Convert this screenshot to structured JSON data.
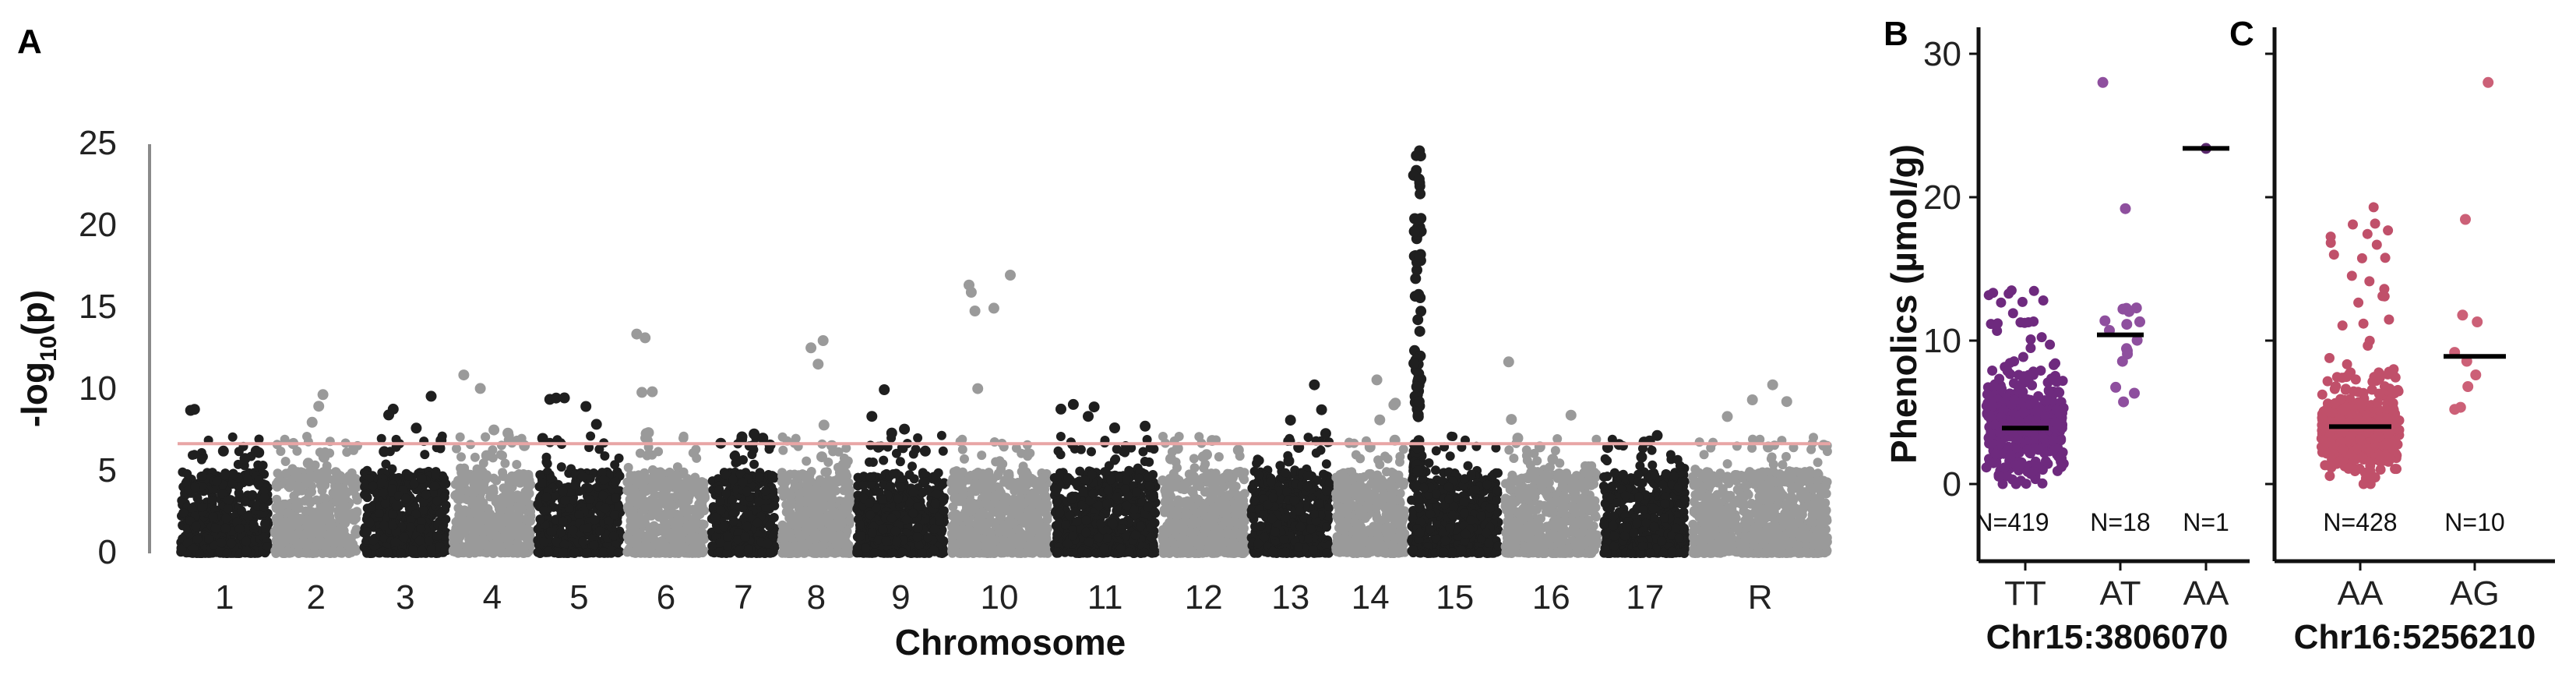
{
  "chart_data": [
    {
      "panel": "A",
      "type": "scatter",
      "subtype": "manhattan",
      "xlabel": "Chromosome",
      "ylabel": "-log10(p)",
      "ylabel_main": "-log",
      "ylabel_sub": "10",
      "ylabel_tail": "(p)",
      "ylim": [
        0,
        26
      ],
      "yticks": [
        "0",
        "5",
        "10",
        "15",
        "20",
        "25"
      ],
      "ytick_values": [
        0,
        5,
        10,
        15,
        20,
        25
      ],
      "threshold": 6.7,
      "threshold_color": "#e8a5a5",
      "colors": [
        "#1f1f1f",
        "#9a9a9a"
      ],
      "chromosomes": [
        {
          "label": "1",
          "size": 1.0,
          "peak": 8.8
        },
        {
          "label": "2",
          "size": 0.95,
          "peak": 9.7
        },
        {
          "label": "3",
          "size": 0.95,
          "peak": 9.6
        },
        {
          "label": "4",
          "size": 0.9,
          "peak": 10.9
        },
        {
          "label": "5",
          "size": 0.95,
          "peak": 9.5
        },
        {
          "label": "6",
          "size": 0.9,
          "peak": 13.4
        },
        {
          "label": "7",
          "size": 0.75,
          "peak": 7.3
        },
        {
          "label": "8",
          "size": 0.8,
          "peak": 13.0
        },
        {
          "label": "9",
          "size": 1.0,
          "peak": 10.0
        },
        {
          "label": "10",
          "size": 1.1,
          "peak": 17.0
        },
        {
          "label": "11",
          "size": 1.15,
          "peak": 9.1
        },
        {
          "label": "12",
          "size": 0.95,
          "peak": 6.9
        },
        {
          "label": "13",
          "size": 0.9,
          "peak": 10.3
        },
        {
          "label": "14",
          "size": 0.8,
          "peak": 10.6
        },
        {
          "label": "15",
          "size": 1.0,
          "peak": 24.3
        },
        {
          "label": "16",
          "size": 1.05,
          "peak": 11.7
        },
        {
          "label": "17",
          "size": 0.95,
          "peak": 7.2
        },
        {
          "label": "R",
          "size": 1.5,
          "peak": 10.3
        }
      ]
    },
    {
      "panel": "B",
      "type": "scatter",
      "subtype": "strip",
      "ylabel": "Phenolics (µmol/g)",
      "ylim": [
        -1,
        31.5
      ],
      "yticks": [
        "0",
        "10",
        "20",
        "30"
      ],
      "ytick_values": [
        0,
        10,
        20,
        30
      ],
      "snp": "Chr15:3806070",
      "groups": [
        {
          "label": "TT",
          "n_label": "N=419",
          "n": 419,
          "median": 3.9,
          "max": 13.5,
          "color": "#6e2a7e"
        },
        {
          "label": "AT",
          "n_label": "N=18",
          "n": 18,
          "median": 10.4,
          "max": 28.0,
          "color": "#8e4f9e"
        },
        {
          "label": "AA",
          "n_label": "N=1",
          "n": 1,
          "median": 23.4,
          "max": 23.4,
          "color": "#5b2a6e"
        }
      ]
    },
    {
      "panel": "C",
      "type": "scatter",
      "subtype": "strip",
      "ylabel": "",
      "ylim": [
        -1,
        31.5
      ],
      "snp": "Chr16:5256210",
      "groups": [
        {
          "label": "AA",
          "n_label": "N=428",
          "n": 428,
          "median": 4.0,
          "max": 19.3,
          "color": "#c0506a"
        },
        {
          "label": "AG",
          "n_label": "N=10",
          "n": 10,
          "median": 8.9,
          "max": 28.0,
          "color": "#cc6077"
        }
      ]
    }
  ]
}
